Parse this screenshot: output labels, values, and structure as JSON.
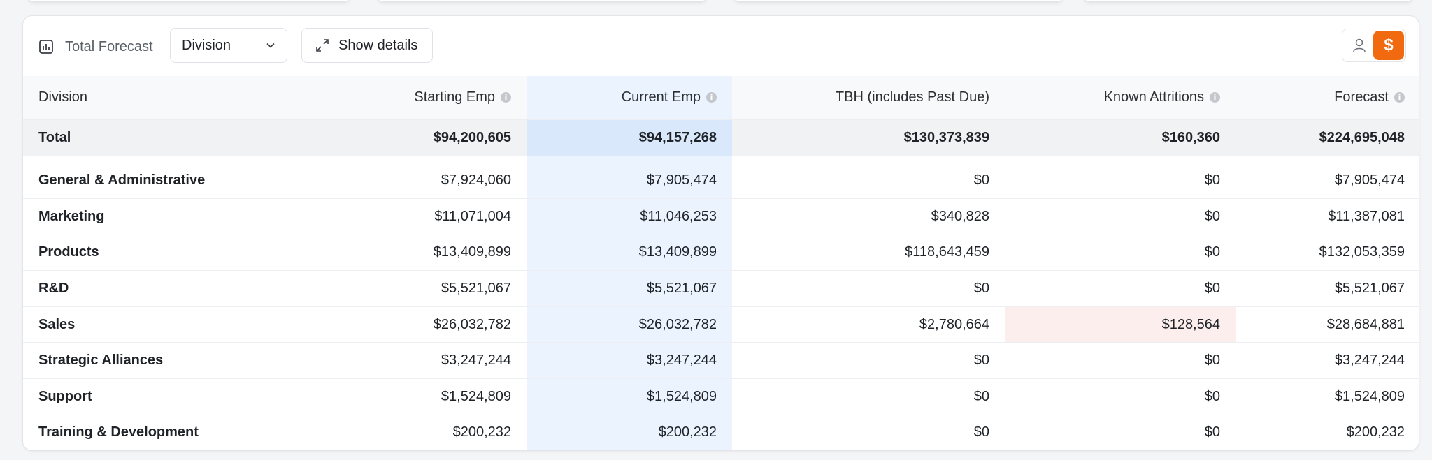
{
  "toolbar": {
    "title": "Total Forecast",
    "group_by_value": "Division",
    "details_label": "Show details",
    "view_toggle": {
      "person_icon": "person-icon",
      "dollar_label": "$",
      "active": "dollar",
      "accent_color": "#f26a10"
    }
  },
  "table": {
    "columns": [
      "Division",
      "Starting Emp",
      "Current Emp",
      "TBH (includes Past Due)",
      "Known Attritions",
      "Forecast"
    ],
    "total": {
      "label": "Total",
      "starting_emp": "$94,200,605",
      "current_emp": "$94,157,268",
      "tbh": "$130,373,839",
      "known_attritions": "$160,360",
      "forecast": "$224,695,048"
    },
    "rows": [
      {
        "division": "General & Administrative",
        "starting_emp": "$7,924,060",
        "current_emp": "$7,905,474",
        "tbh": "$0",
        "known_attritions": "$0",
        "forecast": "$7,905,474"
      },
      {
        "division": "Marketing",
        "starting_emp": "$11,071,004",
        "current_emp": "$11,046,253",
        "tbh": "$340,828",
        "known_attritions": "$0",
        "forecast": "$11,387,081"
      },
      {
        "division": "Products",
        "starting_emp": "$13,409,899",
        "current_emp": "$13,409,899",
        "tbh": "$118,643,459",
        "known_attritions": "$0",
        "forecast": "$132,053,359"
      },
      {
        "division": "R&D",
        "starting_emp": "$5,521,067",
        "current_emp": "$5,521,067",
        "tbh": "$0",
        "known_attritions": "$0",
        "forecast": "$5,521,067"
      },
      {
        "division": "Sales",
        "starting_emp": "$26,032,782",
        "current_emp": "$26,032,782",
        "tbh": "$2,780,664",
        "known_attritions": "$128,564",
        "forecast": "$28,684,881"
      },
      {
        "division": "Strategic Alliances",
        "starting_emp": "$3,247,244",
        "current_emp": "$3,247,244",
        "tbh": "$0",
        "known_attritions": "$0",
        "forecast": "$3,247,244"
      },
      {
        "division": "Support",
        "starting_emp": "$1,524,809",
        "current_emp": "$1,524,809",
        "tbh": "$0",
        "known_attritions": "$0",
        "forecast": "$1,524,809"
      },
      {
        "division": "Training & Development",
        "starting_emp": "$200,232",
        "current_emp": "$200,232",
        "tbh": "$0",
        "known_attritions": "$0",
        "forecast": "$200,232"
      }
    ]
  },
  "colors": {
    "current_emp_highlight": "#eaf3fe",
    "total_current_highlight": "#d9e8fb",
    "attrition_highlight": "#fdeeee"
  }
}
